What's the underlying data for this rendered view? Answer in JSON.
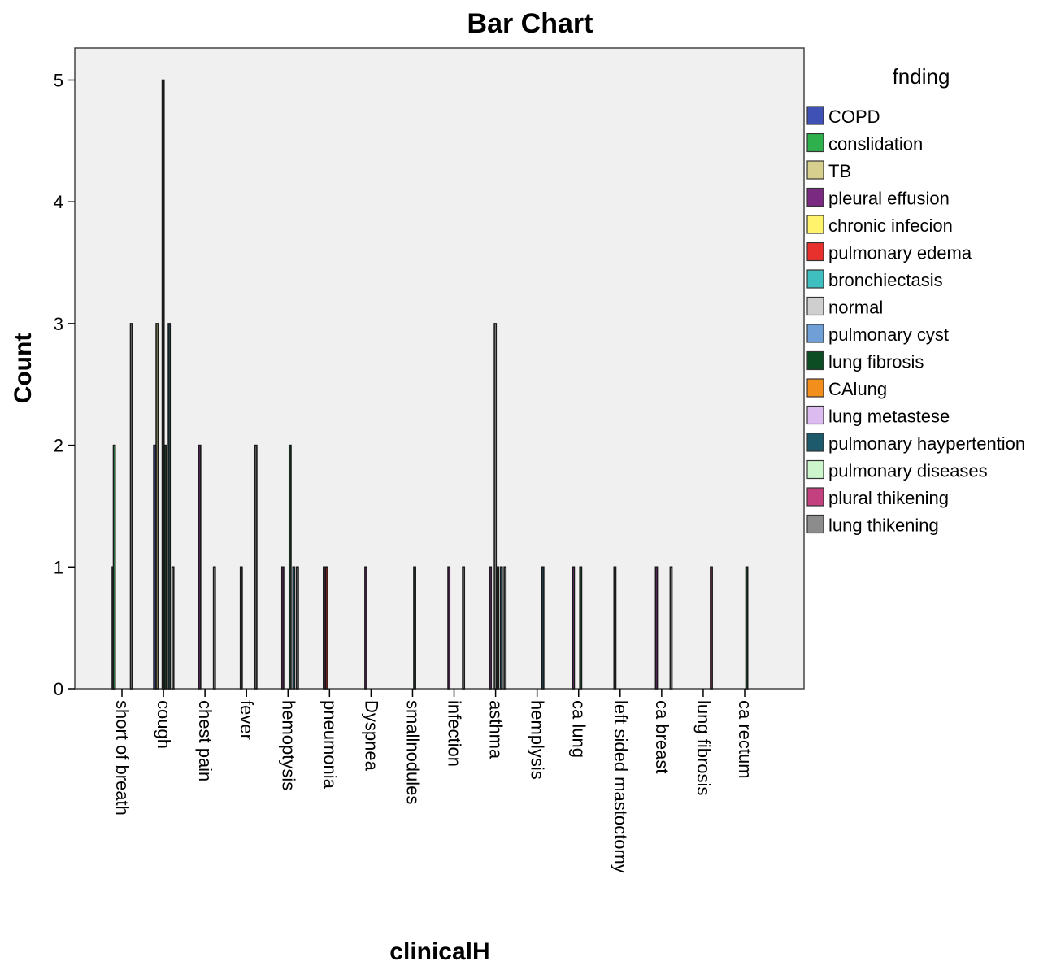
{
  "chart_data": {
    "type": "bar",
    "title": "Bar Chart",
    "xlabel": "clinicalH",
    "ylabel": "Count",
    "ylim": [
      0,
      5.3
    ],
    "yticks": [
      "0",
      "1",
      "2",
      "3",
      "4",
      "5"
    ],
    "grid": false,
    "legend_title": "fnding",
    "legend_placement": "right",
    "categories": [
      "short of breath",
      "cough",
      "chest pain",
      "fever",
      "hemoptysis",
      "pneumonia",
      "Dyspnea",
      "smallnodules",
      "infection",
      "asthma",
      "hemplysis",
      "ca lung",
      "left sided mastoctomy",
      "ca breast",
      "lung fibrosis",
      "ca rectum"
    ],
    "series": [
      {
        "name": "COPD",
        "color": "#3f51b5",
        "values": [
          1,
          2,
          0,
          0,
          0,
          0,
          0,
          0,
          0,
          0,
          0,
          0,
          0,
          0,
          0,
          0
        ]
      },
      {
        "name": "conslidation",
        "color": "#2eb04c",
        "values": [
          2,
          0,
          0,
          0,
          0,
          0,
          0,
          0,
          0,
          0,
          0,
          0,
          0,
          0,
          0,
          0
        ]
      },
      {
        "name": "TB",
        "color": "#d6cf8e",
        "values": [
          0,
          3,
          0,
          0,
          0,
          0,
          0,
          0,
          0,
          0,
          0,
          0,
          0,
          0,
          0,
          0
        ]
      },
      {
        "name": "pleural effusion",
        "color": "#7b2a82",
        "values": [
          0,
          0,
          2,
          1,
          1,
          1,
          1,
          0,
          1,
          1,
          0,
          1,
          1,
          1,
          0,
          0
        ]
      },
      {
        "name": "chronic infecion",
        "color": "#fff36b",
        "values": [
          0,
          0,
          0,
          0,
          0,
          0,
          0,
          0,
          0,
          0,
          0,
          0,
          0,
          0,
          0,
          0
        ]
      },
      {
        "name": "pulmonary edema",
        "color": "#e8302d",
        "values": [
          0,
          0,
          0,
          0,
          0,
          1,
          0,
          0,
          0,
          0,
          0,
          0,
          0,
          0,
          0,
          0
        ]
      },
      {
        "name": "bronchiectasis",
        "color": "#3fbfbf",
        "values": [
          0,
          0,
          0,
          0,
          0,
          0,
          0,
          0,
          0,
          0,
          0,
          0,
          0,
          0,
          0,
          0
        ]
      },
      {
        "name": "normal",
        "color": "#cfcfcf",
        "values": [
          0,
          5,
          0,
          0,
          0,
          0,
          0,
          0,
          0,
          3,
          0,
          0,
          0,
          0,
          0,
          0
        ]
      },
      {
        "name": "pulmonary cyst",
        "color": "#6f9fd6",
        "values": [
          0,
          0,
          0,
          0,
          0,
          0,
          0,
          0,
          0,
          0,
          0,
          0,
          0,
          0,
          0,
          0
        ]
      },
      {
        "name": "lung fibrosis",
        "color": "#0d4d24",
        "values": [
          0,
          2,
          0,
          0,
          2,
          0,
          0,
          1,
          0,
          1,
          0,
          1,
          0,
          0,
          0,
          1
        ]
      },
      {
        "name": "CAlung",
        "color": "#f28e1c",
        "values": [
          0,
          0,
          0,
          0,
          0,
          0,
          0,
          0,
          0,
          0,
          0,
          0,
          0,
          0,
          0,
          0
        ]
      },
      {
        "name": "lung metastese",
        "color": "#dcbcf0",
        "values": [
          0,
          0,
          0,
          0,
          0,
          0,
          0,
          0,
          0,
          0,
          0,
          0,
          0,
          0,
          0,
          0
        ]
      },
      {
        "name": "pulmonary haypertention",
        "color": "#1d5a6b",
        "values": [
          0,
          3,
          0,
          0,
          1,
          0,
          0,
          0,
          0,
          1,
          1,
          0,
          0,
          0,
          0,
          0
        ]
      },
      {
        "name": "pulmonary diseases",
        "color": "#ccf5cc",
        "values": [
          0,
          0,
          0,
          0,
          0,
          0,
          0,
          0,
          0,
          0,
          0,
          0,
          0,
          0,
          0,
          0
        ]
      },
      {
        "name": "plural thikening",
        "color": "#c2417e",
        "values": [
          0,
          0,
          0,
          0,
          0,
          0,
          0,
          0,
          0,
          0,
          0,
          0,
          0,
          0,
          1,
          0
        ]
      },
      {
        "name": "lung thikening",
        "color": "#8c8c8c",
        "values": [
          3,
          1,
          1,
          2,
          1,
          0,
          0,
          0,
          1,
          1,
          0,
          0,
          0,
          1,
          0,
          0
        ]
      }
    ]
  }
}
